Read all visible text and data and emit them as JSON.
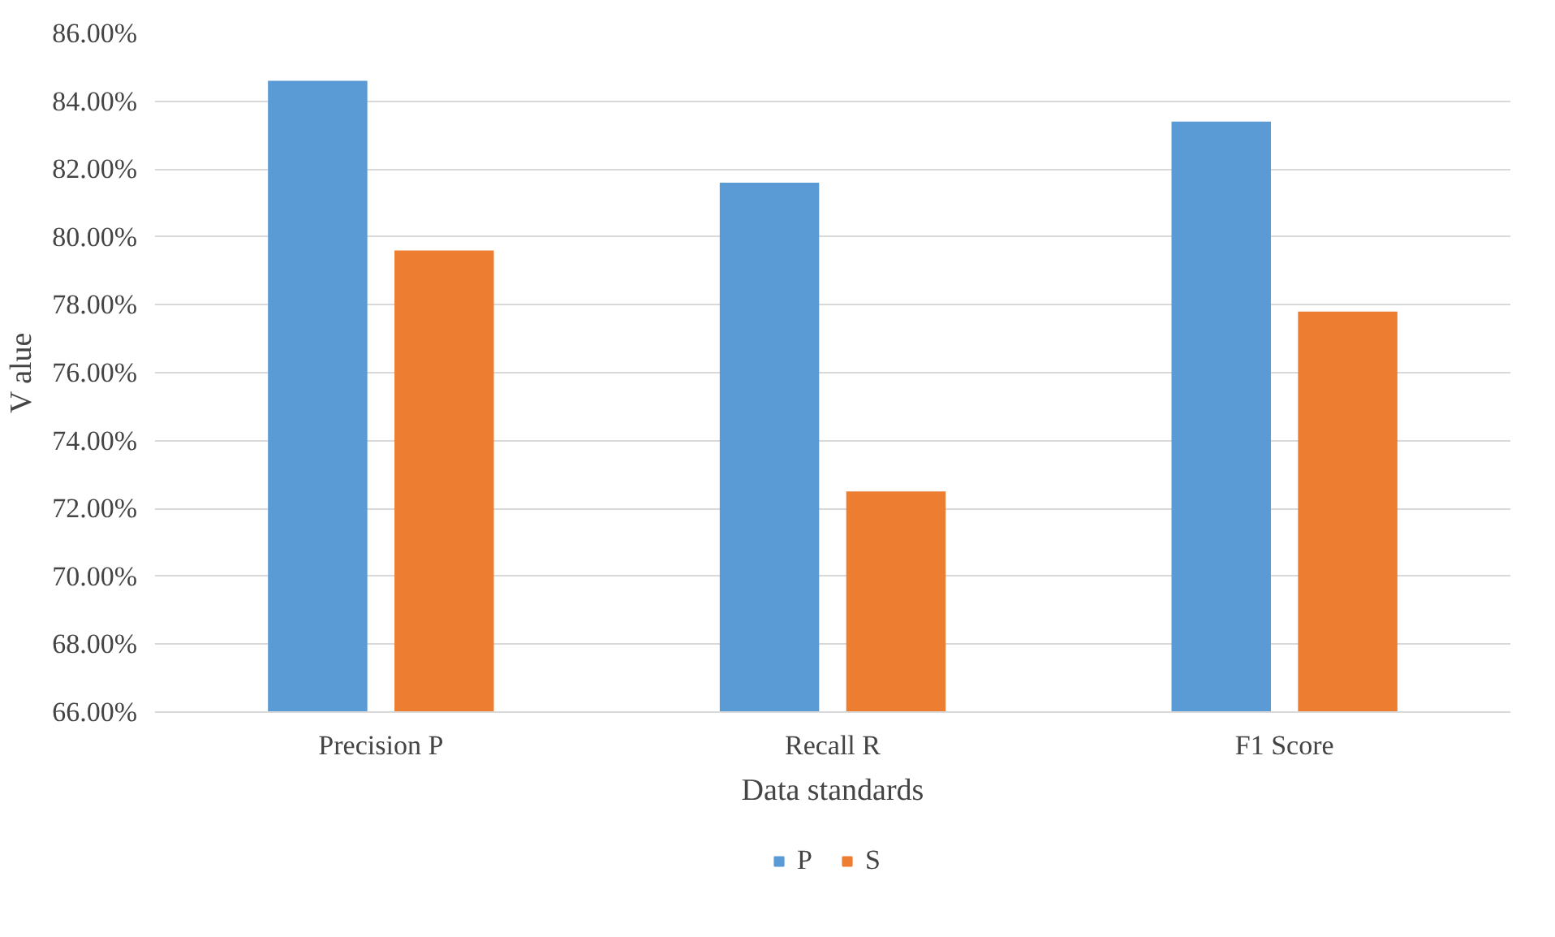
{
  "chart_data": {
    "type": "bar",
    "xlabel": "Data standards",
    "ylabel": "V alue",
    "categories": [
      "Precision P",
      "Recall R",
      "F1 Score"
    ],
    "series": [
      {
        "name": "P",
        "color": "#5b9bd5",
        "values": [
          84.6,
          81.6,
          83.4
        ]
      },
      {
        "name": "S",
        "color": "#ed7d31",
        "values": [
          79.6,
          72.5,
          77.8
        ]
      }
    ],
    "ylim": [
      66,
      86
    ],
    "yticks": [
      {
        "value": 66,
        "label": "66.00%"
      },
      {
        "value": 68,
        "label": "68.00%"
      },
      {
        "value": 70,
        "label": "70.00%"
      },
      {
        "value": 72,
        "label": "72.00%"
      },
      {
        "value": 74,
        "label": "74.00%"
      },
      {
        "value": 76,
        "label": "76.00%"
      },
      {
        "value": 78,
        "label": "78.00%"
      },
      {
        "value": 80,
        "label": "80.00%"
      },
      {
        "value": 82,
        "label": "82.00%"
      },
      {
        "value": 84,
        "label": "84.00%"
      },
      {
        "value": 86,
        "label": "86.00%"
      }
    ],
    "grid": "y",
    "legend": "bottom"
  }
}
